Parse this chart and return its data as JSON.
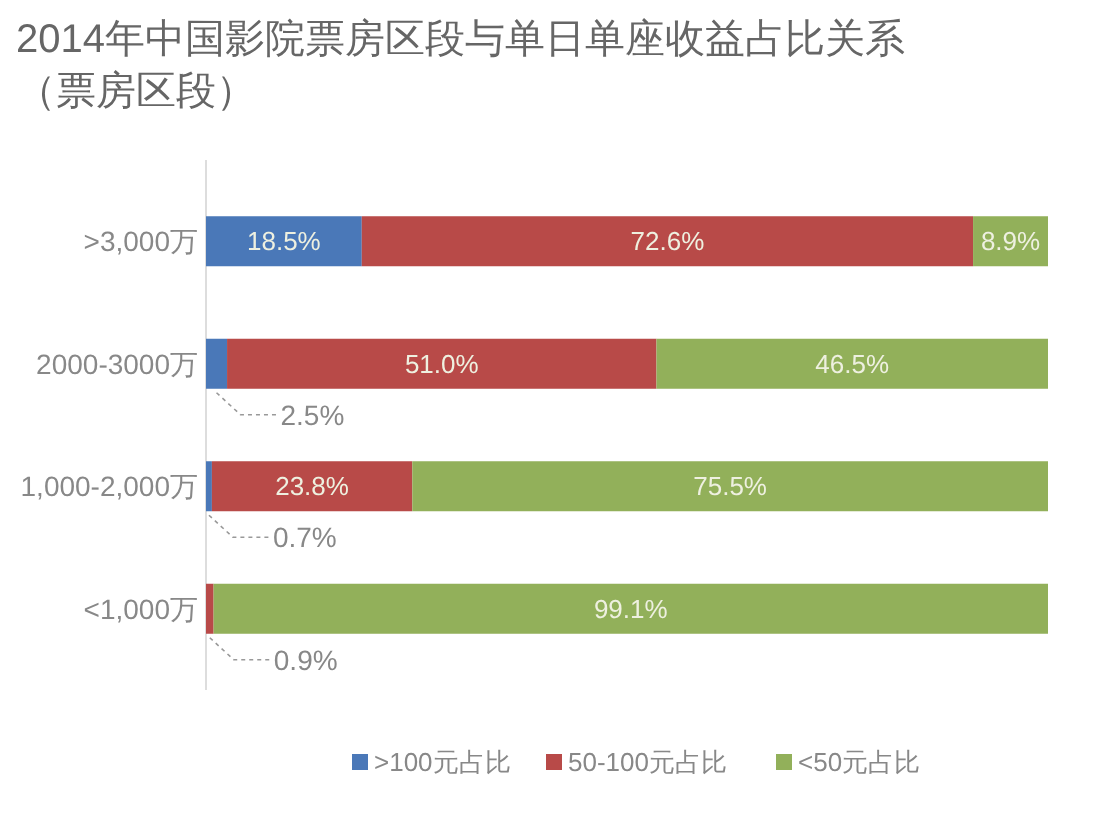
{
  "chart_data": {
    "type": "bar",
    "orientation": "horizontal",
    "stacked": true,
    "title": "2014年中国影院票房区段与单日单座收益占比关系",
    "subtitle": "（票房区段）",
    "categories": [
      ">3,000万",
      "2000-3000万",
      "1,000-2,000万",
      "<1,000万"
    ],
    "series": [
      {
        "name": ">100元占比",
        "color": "#4a78b8",
        "values": [
          18.5,
          2.5,
          0.7,
          0
        ],
        "value_labels": [
          "18.5%",
          "2.5%",
          "0.7%",
          null
        ]
      },
      {
        "name": "50-100元占比",
        "color": "#b84a48",
        "values": [
          72.6,
          51.0,
          23.8,
          0.9
        ],
        "value_labels": [
          "72.6%",
          "51.0%",
          "23.8%",
          "0.9%"
        ]
      },
      {
        "name": "<50元占比",
        "color": "#92b05a",
        "values": [
          8.9,
          46.5,
          75.5,
          99.1
        ],
        "value_labels": [
          "8.9%",
          "46.5%",
          "75.5%",
          "99.1%"
        ]
      }
    ],
    "xlim": [
      0,
      100
    ],
    "tick_labels": "y",
    "legend": "bottom"
  }
}
